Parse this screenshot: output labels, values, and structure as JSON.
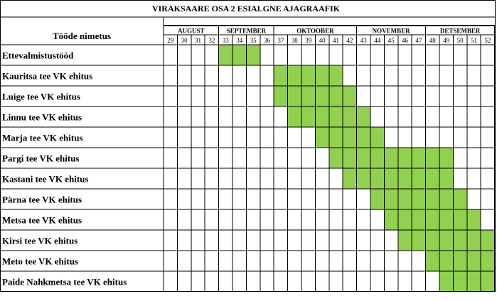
{
  "chart_data": {
    "type": "gantt",
    "title": "VIRAKSAARE OSA 2 ESIALGNE  AJAGRAAFIK",
    "task_header": "Tööde nimetus",
    "months": [
      {
        "label": "AUGUST",
        "first_week": 29,
        "last_week": 32
      },
      {
        "label": "SEPTEMBER",
        "first_week": 33,
        "last_week": 36
      },
      {
        "label": "OKTOOBER",
        "first_week": 37,
        "last_week": 42
      },
      {
        "label": "NOVEMBER",
        "first_week": 43,
        "last_week": 47
      },
      {
        "label": "DETSEMBER",
        "first_week": 48,
        "last_week": 52
      }
    ],
    "weeks": [
      29,
      30,
      31,
      32,
      33,
      34,
      35,
      36,
      37,
      38,
      39,
      40,
      41,
      42,
      43,
      44,
      45,
      46,
      47,
      48,
      49,
      50,
      51,
      52
    ],
    "tasks": [
      {
        "name": "Ettevalmistustööd",
        "start_week": 33,
        "end_week": 35
      },
      {
        "name": "Kauritsa tee VK ehitus",
        "start_week": 37,
        "end_week": 41
      },
      {
        "name": "Luige tee VK ehitus",
        "start_week": 37,
        "end_week": 42
      },
      {
        "name": "Linnu tee VK ehitus",
        "start_week": 38,
        "end_week": 43
      },
      {
        "name": "Marja tee VK ehitus",
        "start_week": 40,
        "end_week": 44
      },
      {
        "name": "Pargi tee VK ehitus",
        "start_week": 41,
        "end_week": 49
      },
      {
        "name": "Kastani tee VK ehitus",
        "start_week": 42,
        "end_week": 49
      },
      {
        "name": "Pärna tee VK ehitus",
        "start_week": 44,
        "end_week": 50
      },
      {
        "name": "Metsa tee VK ehitus",
        "start_week": 45,
        "end_week": 51
      },
      {
        "name": "Kirsi tee VK ehitus",
        "start_week": 46,
        "end_week": 52
      },
      {
        "name": "Meto tee VK ehitus",
        "start_week": 48,
        "end_week": 52
      },
      {
        "name": "Paide Nahkmetsa tee VK ehitus",
        "start_week": 49,
        "end_week": 52
      }
    ],
    "bar_color": "#92d050",
    "grid": true
  }
}
